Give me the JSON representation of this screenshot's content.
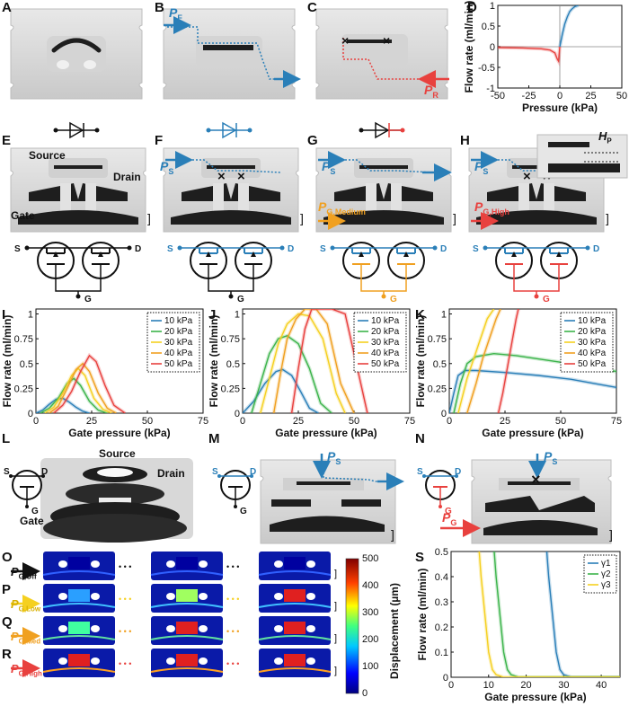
{
  "panel_labels": [
    "A",
    "B",
    "C",
    "D",
    "E",
    "F",
    "G",
    "H",
    "I",
    "J",
    "K",
    "L",
    "M",
    "N",
    "O",
    "P",
    "Q",
    "R",
    "S"
  ],
  "annotations": {
    "pf": "P",
    "pf_sub": "F",
    "pr": "P",
    "pr_sub": "R",
    "ps": "P",
    "ps_sub": "S",
    "source": "Source",
    "drain": "Drain",
    "gate": "Gate",
    "pg_medium": "P",
    "pg_medium_sub": "G,Medium",
    "pg_high": "P",
    "pg_high_sub": "G,High",
    "hp": "H",
    "hp_sub": "P",
    "s": "S",
    "d": "D",
    "g": "G",
    "pg": "P",
    "pg_sub": "G",
    "pg_off": "P",
    "pg_off_sub": "G,Off",
    "pg_low": "P",
    "pg_low_sub": "G,Low",
    "pg_med": "P",
    "pg_med_sub": "G,Med",
    "pg_high2": "P",
    "pg_high2_sub": "G,High",
    "colorbar_label": "Displacement (µm)",
    "colorbar_ticks": [
      "500",
      "400",
      "300",
      "200",
      "100",
      "0"
    ],
    "bracket": "]",
    "ellipsis": "• • •"
  },
  "colors": {
    "blue": "#2a7fb8",
    "red": "#e8413e",
    "orange": "#f0a020",
    "yellow": "#f5d020",
    "green": "#3cb44b",
    "gray": "#dcdcdc",
    "dark": "#1e1e1e"
  },
  "chart_data": [
    {
      "id": "D",
      "type": "line",
      "xlabel": "Pressure (kPa)",
      "ylabel": "Flow rate (ml/min)",
      "xlim": [
        -50,
        50
      ],
      "ylim": [
        -1,
        1
      ],
      "xticks": [
        -50,
        -25,
        0,
        25,
        50
      ],
      "yticks": [
        -1,
        -0.5,
        0,
        0.5,
        1
      ],
      "series": [
        {
          "color": "#2a7fb8",
          "x": [
            0,
            2,
            4,
            6,
            8,
            10,
            12,
            15
          ],
          "y": [
            0,
            0.3,
            0.55,
            0.72,
            0.85,
            0.92,
            0.97,
            1.0
          ]
        },
        {
          "color": "#e8413e",
          "x": [
            -50,
            -30,
            -15,
            -8,
            -4,
            -2,
            -1,
            0
          ],
          "y": [
            -0.02,
            -0.03,
            -0.05,
            -0.08,
            -0.15,
            -0.3,
            -0.35,
            0
          ]
        }
      ]
    },
    {
      "id": "I",
      "type": "line",
      "xlabel": "Gate pressure (kPa)",
      "ylabel": "Flow rate (ml/min)",
      "xlim": [
        0,
        75
      ],
      "ylim": [
        0,
        1.05
      ],
      "xticks": [
        0,
        25,
        50,
        75
      ],
      "yticks": [
        0,
        0.25,
        0.5,
        0.75,
        1
      ],
      "legend": [
        "10 kPa",
        "20 kPa",
        "30 kPa",
        "40 kPa",
        "50 kPa"
      ],
      "series": [
        {
          "name": "10 kPa",
          "color": "#2a7fb8",
          "x": [
            0,
            3,
            6,
            9,
            12,
            15,
            18,
            21,
            24
          ],
          "y": [
            0,
            0.03,
            0.09,
            0.14,
            0.15,
            0.11,
            0.06,
            0.02,
            0
          ]
        },
        {
          "name": "20 kPa",
          "color": "#3cb44b",
          "x": [
            2,
            6,
            10,
            14,
            17,
            20,
            24,
            28,
            32
          ],
          "y": [
            0,
            0.05,
            0.15,
            0.3,
            0.35,
            0.28,
            0.12,
            0.03,
            0
          ]
        },
        {
          "name": "30 kPa",
          "color": "#f5d020",
          "x": [
            4,
            8,
            12,
            16,
            19,
            22,
            26,
            30,
            34
          ],
          "y": [
            0,
            0.06,
            0.2,
            0.38,
            0.45,
            0.38,
            0.15,
            0.04,
            0
          ]
        },
        {
          "name": "40 kPa",
          "color": "#f0a020",
          "x": [
            6,
            10,
            14,
            18,
            21,
            24,
            28,
            32,
            36
          ],
          "y": [
            0,
            0.07,
            0.25,
            0.44,
            0.5,
            0.42,
            0.2,
            0.05,
            0
          ]
        },
        {
          "name": "50 kPa",
          "color": "#e8413e",
          "x": [
            8,
            12,
            16,
            20,
            24,
            27,
            31,
            35,
            40
          ],
          "y": [
            0,
            0.08,
            0.22,
            0.42,
            0.58,
            0.52,
            0.28,
            0.08,
            0
          ]
        }
      ]
    },
    {
      "id": "J",
      "type": "line",
      "xlabel": "Gate pressure (kPa)",
      "ylabel": "Flow rate (ml/min)",
      "xlim": [
        0,
        75
      ],
      "ylim": [
        0,
        1.05
      ],
      "xticks": [
        0,
        25,
        50,
        75
      ],
      "yticks": [
        0,
        0.25,
        0.5,
        0.75,
        1
      ],
      "legend": [
        "10 kPa",
        "20 kPa",
        "30 kPa",
        "40 kPa",
        "50 kPa"
      ],
      "series": [
        {
          "name": "10 kPa",
          "color": "#2a7fb8",
          "x": [
            0,
            5,
            10,
            15,
            18,
            22,
            26,
            30,
            34
          ],
          "y": [
            0,
            0.12,
            0.3,
            0.42,
            0.44,
            0.38,
            0.22,
            0.05,
            0
          ]
        },
        {
          "name": "20 kPa",
          "color": "#3cb44b",
          "x": [
            4,
            8,
            12,
            16,
            20,
            25,
            30,
            35,
            40
          ],
          "y": [
            0,
            0.3,
            0.6,
            0.75,
            0.78,
            0.7,
            0.45,
            0.1,
            0
          ]
        },
        {
          "name": "30 kPa",
          "color": "#f5d020",
          "x": [
            8,
            12,
            16,
            20,
            25,
            30,
            36,
            42,
            46
          ],
          "y": [
            0,
            0.35,
            0.7,
            0.9,
            1.0,
            0.98,
            0.75,
            0.2,
            0
          ]
        },
        {
          "name": "40 kPa",
          "color": "#f0a020",
          "x": [
            14,
            17,
            20,
            24,
            28,
            33,
            38,
            44,
            50
          ],
          "y": [
            0,
            0.4,
            0.75,
            0.95,
            1.05,
            1.05,
            0.9,
            0.3,
            0
          ]
        },
        {
          "name": "50 kPa",
          "color": "#e8413e",
          "x": [
            22,
            25,
            28,
            31,
            35,
            40,
            46,
            52,
            56
          ],
          "y": [
            0,
            0.45,
            0.85,
            1.05,
            1.05,
            1.05,
            1.0,
            0.4,
            0
          ]
        }
      ]
    },
    {
      "id": "K",
      "type": "line",
      "xlabel": "Gate pressure (kPa)",
      "ylabel": "Flow rate (ml/min)",
      "xlim": [
        0,
        75
      ],
      "ylim": [
        0,
        1.05
      ],
      "xticks": [
        0,
        25,
        50,
        75
      ],
      "yticks": [
        0,
        0.25,
        0.5,
        0.75,
        1
      ],
      "legend": [
        "10 kPa",
        "20 kPa",
        "30 kPa",
        "40 kPa",
        "50 kPa"
      ],
      "series": [
        {
          "name": "10 kPa",
          "color": "#2a7fb8",
          "x": [
            0,
            2,
            4,
            7,
            12,
            25,
            40,
            55,
            65,
            75
          ],
          "y": [
            0,
            0.2,
            0.38,
            0.43,
            0.43,
            0.41,
            0.38,
            0.34,
            0.3,
            0.26
          ]
        },
        {
          "name": "20 kPa",
          "color": "#3cb44b",
          "x": [
            2,
            5,
            8,
            12,
            20,
            30,
            45,
            60,
            70,
            75
          ],
          "y": [
            0,
            0.3,
            0.5,
            0.57,
            0.6,
            0.58,
            0.53,
            0.48,
            0.44,
            0.42
          ]
        },
        {
          "name": "30 kPa",
          "color": "#f5d020",
          "x": [
            4,
            8,
            11,
            14,
            17,
            20
          ],
          "y": [
            0,
            0.35,
            0.55,
            0.75,
            0.95,
            1.05
          ]
        },
        {
          "name": "40 kPa",
          "color": "#f0a020",
          "x": [
            8,
            12,
            15,
            18,
            21,
            23
          ],
          "y": [
            0,
            0.3,
            0.55,
            0.75,
            0.95,
            1.05
          ]
        },
        {
          "name": "50 kPa",
          "color": "#e8413e",
          "x": [
            22,
            24,
            26,
            28,
            30,
            31
          ],
          "y": [
            0,
            0.2,
            0.45,
            0.7,
            0.95,
            1.05
          ]
        }
      ]
    },
    {
      "id": "S",
      "type": "line",
      "xlabel": "Gate pressure (kPa)",
      "ylabel": "Flow rate (ml/min)",
      "xlim": [
        0,
        45
      ],
      "ylim": [
        0,
        0.5
      ],
      "xticks": [
        0,
        10,
        20,
        30,
        40
      ],
      "yticks": [
        0,
        0.1,
        0.2,
        0.3,
        0.4,
        0.5
      ],
      "legend": [
        "γ1",
        "γ2",
        "γ3"
      ],
      "series": [
        {
          "name": "γ1",
          "color": "#2a7fb8",
          "x": [
            25.5,
            26,
            27,
            28,
            29,
            30,
            32,
            45
          ],
          "y": [
            0.5,
            0.4,
            0.25,
            0.1,
            0.03,
            0.01,
            0,
            0
          ]
        },
        {
          "name": "γ2",
          "color": "#3cb44b",
          "x": [
            11.5,
            12,
            13,
            14,
            15,
            16,
            18,
            45
          ],
          "y": [
            0.5,
            0.4,
            0.25,
            0.1,
            0.03,
            0.01,
            0,
            0
          ]
        },
        {
          "name": "γ3",
          "color": "#f5d020",
          "x": [
            7.5,
            8,
            9,
            10,
            11,
            12,
            14,
            45
          ],
          "y": [
            0.5,
            0.4,
            0.25,
            0.1,
            0.03,
            0.01,
            0,
            0
          ]
        }
      ]
    }
  ]
}
